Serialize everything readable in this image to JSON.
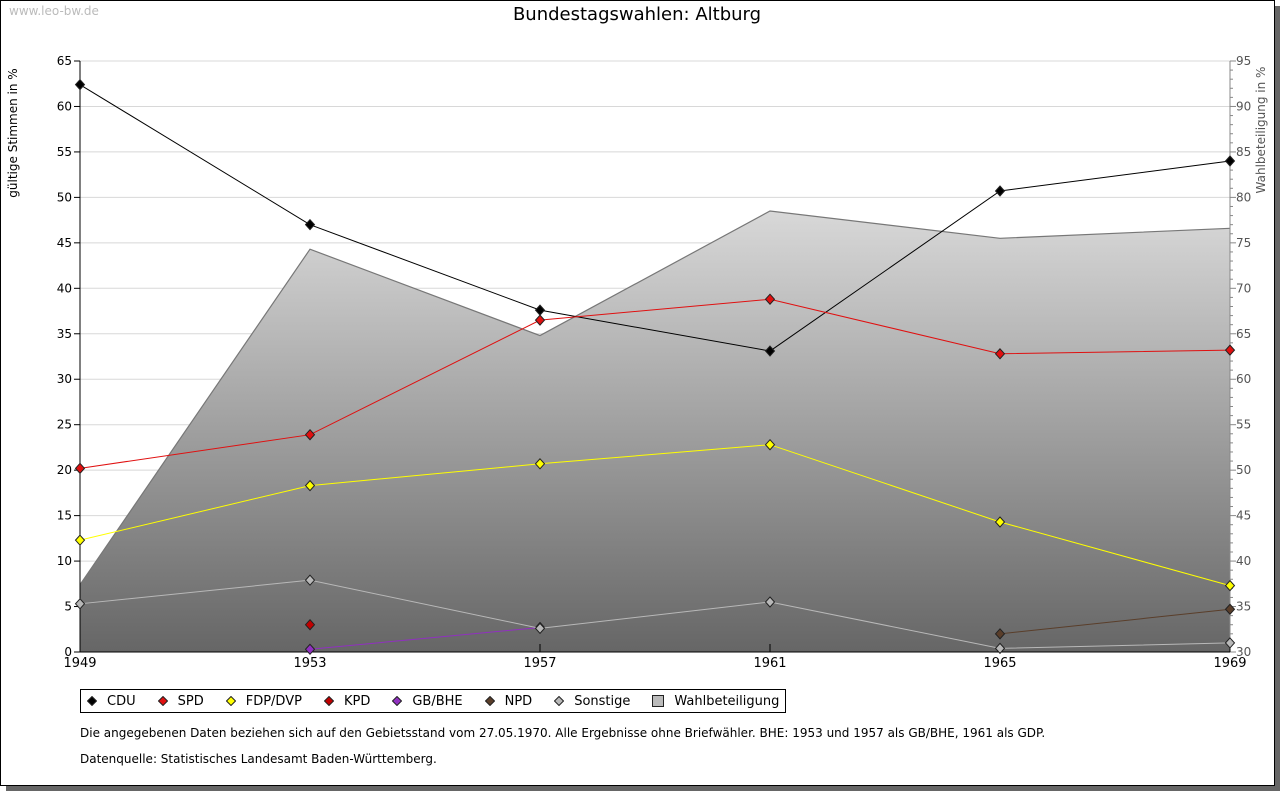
{
  "watermark": "www.leo-bw.de",
  "chart_data": {
    "type": "line",
    "title": "Bundestagswahlen: Altburg",
    "ylabel": "gültige Stimmen in %",
    "y2label": "Wahlbeteiligung in %",
    "ylim": [
      0,
      65
    ],
    "y2lim": [
      30,
      95
    ],
    "yticks": [
      "0",
      "5",
      "10",
      "15",
      "20",
      "25",
      "30",
      "35",
      "40",
      "45",
      "50",
      "55",
      "60",
      "65"
    ],
    "y2ticks": [
      "30",
      "35",
      "40",
      "45",
      "50",
      "55",
      "60",
      "65",
      "70",
      "75",
      "80",
      "85",
      "90",
      "95"
    ],
    "categories": [
      "1949",
      "1953",
      "1957",
      "1961",
      "1965",
      "1969"
    ],
    "grid": true,
    "legend_position": "bottom",
    "series": [
      {
        "name": "CDU",
        "color": "#000000",
        "values": [
          62.4,
          47.0,
          37.6,
          33.1,
          50.7,
          54.0
        ]
      },
      {
        "name": "SPD",
        "color": "#e01010",
        "values": [
          20.2,
          23.9,
          36.5,
          38.8,
          32.8,
          33.2
        ]
      },
      {
        "name": "FDP/DVP",
        "color": "#ffff00",
        "values": [
          12.3,
          18.3,
          20.7,
          22.8,
          14.3,
          7.3
        ]
      },
      {
        "name": "KPD",
        "color": "#c00000",
        "values": [
          null,
          3.0,
          null,
          null,
          null,
          null
        ]
      },
      {
        "name": "GB/BHE",
        "color": "#9030c0",
        "values": [
          null,
          0.3,
          2.7,
          null,
          null,
          null
        ]
      },
      {
        "name": "NPD",
        "color": "#5a3e2a",
        "values": [
          null,
          null,
          null,
          null,
          2.0,
          4.7
        ]
      },
      {
        "name": "Sonstige",
        "color": "#b8b8b8",
        "values": [
          5.3,
          7.9,
          2.6,
          5.5,
          0.4,
          1.0
        ]
      }
    ],
    "area_series": {
      "name": "Wahlbeteiligung",
      "color": "#a0a0a0",
      "axis": "right",
      "values": [
        37.4,
        74.3,
        64.8,
        78.5,
        75.5,
        76.6
      ]
    }
  },
  "notes": [
    "Die angegebenen Daten beziehen sich auf den Gebietsstand vom 27.05.1970. Alle Ergebnisse ohne Briefwähler. BHE: 1953 und 1957 als GB/BHE, 1961 als GDP.",
    "Datenquelle: Statistisches Landesamt Baden-Württemberg."
  ]
}
